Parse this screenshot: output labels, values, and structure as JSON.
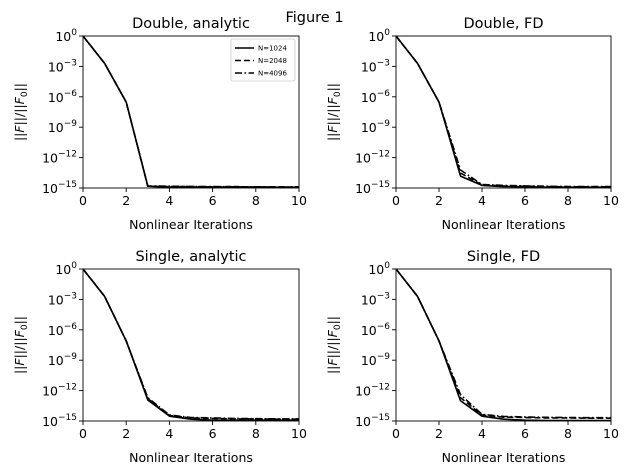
{
  "suptitle": "Figure 1",
  "chart_data": [
    {
      "type": "line",
      "title": "Double, analytic",
      "xlabel": "Nonlinear Iterations",
      "ylabel": "||F||/||F0||",
      "yscale": "log",
      "xlim": [
        0,
        10
      ],
      "ylim": [
        1e-15,
        1
      ],
      "xticks": [
        "0",
        "2",
        "4",
        "6",
        "8",
        "10"
      ],
      "yticks": [
        "10^0",
        "10^-3",
        "10^-6",
        "10^-9",
        "10^-12",
        "10^-15"
      ],
      "legend": "top-right",
      "x": [
        0,
        1,
        2,
        3,
        4,
        5,
        6,
        7,
        8,
        9,
        10
      ],
      "series": [
        {
          "name": "N=1024",
          "style": "solid",
          "values": [
            1,
            0.002,
            3e-07,
            1.5e-15,
            1.2e-15,
            1.2e-15,
            1.2e-15,
            1.2e-15,
            1.3e-15,
            1.2e-15,
            1.2e-15
          ]
        },
        {
          "name": "N=2048",
          "style": "dashed",
          "values": [
            1,
            0.002,
            3e-07,
            1.5e-15,
            1.4e-15,
            1.4e-15,
            1.3e-15,
            1.4e-15,
            1.2e-15,
            1.3e-15,
            1.2e-15
          ]
        },
        {
          "name": "N=4096",
          "style": "dashdot",
          "values": [
            1,
            0.002,
            3e-07,
            1.6e-15,
            1.5e-15,
            1.4e-15,
            1.4e-15,
            1.3e-15,
            1.3e-15,
            1.2e-15,
            1.3e-15
          ]
        }
      ]
    },
    {
      "type": "line",
      "title": "Double, FD",
      "xlabel": "Nonlinear Iterations",
      "ylabel": "||F||/||F0||",
      "yscale": "log",
      "xlim": [
        0,
        10
      ],
      "ylim": [
        1e-15,
        1
      ],
      "xticks": [
        "0",
        "2",
        "4",
        "6",
        "8",
        "10"
      ],
      "yticks": [
        "10^0",
        "10^-3",
        "10^-6",
        "10^-9",
        "10^-12",
        "10^-15"
      ],
      "x": [
        0,
        1,
        2,
        3,
        4,
        5,
        6,
        7,
        8,
        9,
        10
      ],
      "series": [
        {
          "style": "solid",
          "values": [
            1,
            0.002,
            3e-07,
            1.5e-14,
            1.8e-15,
            1.4e-15,
            1.3e-15,
            1.2e-15,
            1.2e-15,
            1.2e-15,
            1.2e-15
          ]
        },
        {
          "style": "dashed",
          "values": [
            1,
            0.002,
            3e-07,
            3e-14,
            2e-15,
            1.6e-15,
            1.5e-15,
            1.4e-15,
            1.3e-15,
            1.3e-15,
            1.3e-15
          ]
        },
        {
          "style": "dashdot",
          "values": [
            1,
            0.002,
            3e-07,
            6e-14,
            2.2e-15,
            1.8e-15,
            1.6e-15,
            1.5e-15,
            1.4e-15,
            1.4e-15,
            1.4e-15
          ]
        }
      ]
    },
    {
      "type": "line",
      "title": "Single, analytic",
      "xlabel": "Nonlinear Iterations",
      "ylabel": "||F||/||F0||",
      "yscale": "log",
      "xlim": [
        0,
        10
      ],
      "ylim": [
        1e-15,
        1
      ],
      "xticks": [
        "0",
        "2",
        "4",
        "6",
        "8",
        "10"
      ],
      "yticks": [
        "10^0",
        "10^-3",
        "10^-6",
        "10^-9",
        "10^-12",
        "10^-15"
      ],
      "x": [
        0,
        1,
        2,
        3,
        4,
        5,
        6,
        7,
        8,
        9,
        10
      ],
      "series": [
        {
          "style": "solid",
          "values": [
            1,
            0.002,
            8e-08,
            1.2e-13,
            3e-15,
            1.5e-15,
            1.2e-15,
            1.2e-15,
            1.2e-15,
            1.2e-15,
            1.2e-15
          ]
        },
        {
          "style": "dashed",
          "values": [
            1,
            0.002,
            8e-08,
            1.6e-13,
            3.5e-15,
            2e-15,
            1.8e-15,
            1.6e-15,
            1.6e-15,
            1.5e-15,
            1.5e-15
          ]
        },
        {
          "style": "dashdot",
          "values": [
            1,
            0.002,
            8e-08,
            2e-13,
            4e-15,
            2.2e-15,
            2e-15,
            1.8e-15,
            1.7e-15,
            1.6e-15,
            1.6e-15
          ]
        }
      ]
    },
    {
      "type": "line",
      "title": "Single, FD",
      "xlabel": "Nonlinear Iterations",
      "ylabel": "||F||/||F0||",
      "yscale": "log",
      "xlim": [
        0,
        10
      ],
      "ylim": [
        1e-15,
        1
      ],
      "xticks": [
        "0",
        "2",
        "4",
        "6",
        "8",
        "10"
      ],
      "yticks": [
        "10^0",
        "10^-3",
        "10^-6",
        "10^-9",
        "10^-12",
        "10^-15"
      ],
      "x": [
        0,
        1,
        2,
        3,
        4,
        5,
        6,
        7,
        8,
        9,
        10
      ],
      "series": [
        {
          "style": "solid",
          "values": [
            1,
            0.002,
            8e-08,
            1e-13,
            3e-15,
            1.5e-15,
            1.2e-15,
            1.1e-15,
            1.1e-15,
            1.1e-15,
            1.1e-15
          ]
        },
        {
          "style": "dashed",
          "values": [
            1,
            0.002,
            8e-08,
            2e-13,
            4e-15,
            2.4e-15,
            2.2e-15,
            2e-15,
            2e-15,
            1.9e-15,
            1.9e-15
          ]
        },
        {
          "style": "dashdot",
          "values": [
            1,
            0.002,
            8e-08,
            4e-13,
            4.5e-15,
            2.8e-15,
            2.5e-15,
            2.3e-15,
            2.2e-15,
            2.1e-15,
            2.1e-15
          ]
        }
      ]
    }
  ]
}
